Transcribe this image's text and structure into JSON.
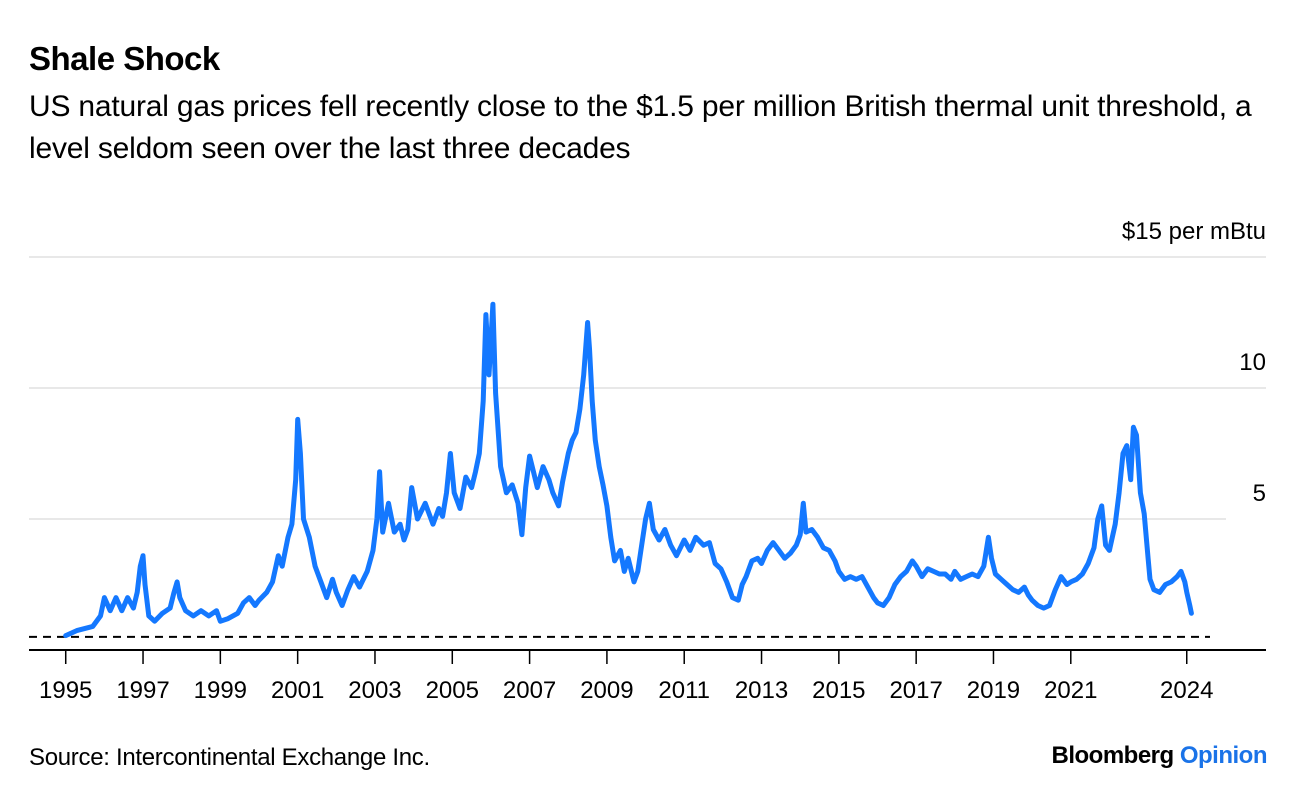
{
  "title": "Shale Shock",
  "subtitle": "US natural gas prices fell recently close to the $1.5 per million British thermal unit threshold, a level seldom seen over the last three decades",
  "source": "Source: Intercontinental Exchange Inc.",
  "brand": {
    "name": "Bloomberg",
    "product": "Opinion"
  },
  "colors": {
    "line": "#1478ff",
    "grid": "#e8e8e8",
    "axis": "#000000",
    "brand_accent": "#1a73e8"
  },
  "chart_data": {
    "type": "line",
    "title": "Shale Shock",
    "ylabel": "$15 per mBtu",
    "xlabel": "",
    "ylim": [
      0,
      15
    ],
    "xlim": [
      1994.05,
      2026.05
    ],
    "yticks": [
      {
        "value": 15,
        "label": "$15 per mBtu"
      },
      {
        "value": 10,
        "label": "10"
      },
      {
        "value": 5,
        "label": "5"
      }
    ],
    "xticks": [
      {
        "value": 1995,
        "label": "1995"
      },
      {
        "value": 1997,
        "label": "1997"
      },
      {
        "value": 1999,
        "label": "1999"
      },
      {
        "value": 2001,
        "label": "2001"
      },
      {
        "value": 2003,
        "label": "2003"
      },
      {
        "value": 2005,
        "label": "2005"
      },
      {
        "value": 2007,
        "label": "2007"
      },
      {
        "value": 2009,
        "label": "2009"
      },
      {
        "value": 2011,
        "label": "2011"
      },
      {
        "value": 2013,
        "label": "2013"
      },
      {
        "value": 2015,
        "label": "2015"
      },
      {
        "value": 2017,
        "label": "2017"
      },
      {
        "value": 2019,
        "label": "2019"
      },
      {
        "value": 2021,
        "label": "2021"
      },
      {
        "value": 2024,
        "label": "2024"
      }
    ],
    "threshold": {
      "value": 0.5,
      "style": "dashed"
    },
    "series": [
      {
        "name": "US natural gas price",
        "points": [
          [
            1995.0,
            0.55
          ],
          [
            1995.3,
            0.75
          ],
          [
            1995.7,
            0.9
          ],
          [
            1995.9,
            1.3
          ],
          [
            1996.0,
            2.0
          ],
          [
            1996.15,
            1.5
          ],
          [
            1996.3,
            2.0
          ],
          [
            1996.45,
            1.5
          ],
          [
            1996.6,
            2.0
          ],
          [
            1996.75,
            1.6
          ],
          [
            1996.85,
            2.2
          ],
          [
            1996.93,
            3.2
          ],
          [
            1997.0,
            3.6
          ],
          [
            1997.05,
            2.5
          ],
          [
            1997.15,
            1.3
          ],
          [
            1997.3,
            1.1
          ],
          [
            1997.5,
            1.4
          ],
          [
            1997.7,
            1.6
          ],
          [
            1997.8,
            2.2
          ],
          [
            1997.88,
            2.6
          ],
          [
            1997.95,
            2.0
          ],
          [
            1998.1,
            1.5
          ],
          [
            1998.3,
            1.3
          ],
          [
            1998.5,
            1.5
          ],
          [
            1998.7,
            1.3
          ],
          [
            1998.9,
            1.5
          ],
          [
            1999.0,
            1.1
          ],
          [
            1999.2,
            1.2
          ],
          [
            1999.45,
            1.4
          ],
          [
            1999.6,
            1.8
          ],
          [
            1999.75,
            2.0
          ],
          [
            1999.9,
            1.7
          ],
          [
            2000.0,
            1.9
          ],
          [
            2000.2,
            2.2
          ],
          [
            2000.35,
            2.6
          ],
          [
            2000.5,
            3.6
          ],
          [
            2000.6,
            3.2
          ],
          [
            2000.75,
            4.3
          ],
          [
            2000.85,
            4.8
          ],
          [
            2000.95,
            6.5
          ],
          [
            2001.0,
            8.8
          ],
          [
            2001.07,
            7.5
          ],
          [
            2001.15,
            5.0
          ],
          [
            2001.3,
            4.3
          ],
          [
            2001.45,
            3.2
          ],
          [
            2001.6,
            2.6
          ],
          [
            2001.75,
            2.0
          ],
          [
            2001.9,
            2.7
          ],
          [
            2002.0,
            2.2
          ],
          [
            2002.15,
            1.7
          ],
          [
            2002.3,
            2.3
          ],
          [
            2002.45,
            2.8
          ],
          [
            2002.6,
            2.4
          ],
          [
            2002.8,
            3.0
          ],
          [
            2002.95,
            3.8
          ],
          [
            2003.05,
            5.0
          ],
          [
            2003.12,
            6.8
          ],
          [
            2003.2,
            4.5
          ],
          [
            2003.35,
            5.6
          ],
          [
            2003.5,
            4.5
          ],
          [
            2003.65,
            4.8
          ],
          [
            2003.75,
            4.2
          ],
          [
            2003.85,
            4.6
          ],
          [
            2003.95,
            6.2
          ],
          [
            2004.1,
            5.0
          ],
          [
            2004.3,
            5.6
          ],
          [
            2004.5,
            4.8
          ],
          [
            2004.65,
            5.4
          ],
          [
            2004.75,
            5.1
          ],
          [
            2004.85,
            6.0
          ],
          [
            2004.95,
            7.5
          ],
          [
            2005.05,
            6.0
          ],
          [
            2005.2,
            5.4
          ],
          [
            2005.35,
            6.6
          ],
          [
            2005.5,
            6.2
          ],
          [
            2005.6,
            6.8
          ],
          [
            2005.7,
            7.5
          ],
          [
            2005.8,
            9.5
          ],
          [
            2005.87,
            12.8
          ],
          [
            2005.95,
            10.5
          ],
          [
            2006.05,
            13.2
          ],
          [
            2006.12,
            9.8
          ],
          [
            2006.25,
            7.0
          ],
          [
            2006.4,
            6.0
          ],
          [
            2006.55,
            6.3
          ],
          [
            2006.7,
            5.6
          ],
          [
            2006.8,
            4.4
          ],
          [
            2006.9,
            6.2
          ],
          [
            2007.0,
            7.4
          ],
          [
            2007.1,
            6.8
          ],
          [
            2007.2,
            6.2
          ],
          [
            2007.35,
            7.0
          ],
          [
            2007.5,
            6.5
          ],
          [
            2007.6,
            6.0
          ],
          [
            2007.75,
            5.5
          ],
          [
            2007.85,
            6.4
          ],
          [
            2008.0,
            7.5
          ],
          [
            2008.1,
            8.0
          ],
          [
            2008.2,
            8.3
          ],
          [
            2008.3,
            9.2
          ],
          [
            2008.4,
            10.5
          ],
          [
            2008.5,
            12.5
          ],
          [
            2008.55,
            11.5
          ],
          [
            2008.62,
            9.5
          ],
          [
            2008.7,
            8.0
          ],
          [
            2008.8,
            7.0
          ],
          [
            2008.9,
            6.3
          ],
          [
            2009.0,
            5.5
          ],
          [
            2009.1,
            4.3
          ],
          [
            2009.2,
            3.4
          ],
          [
            2009.35,
            3.8
          ],
          [
            2009.45,
            3.0
          ],
          [
            2009.55,
            3.5
          ],
          [
            2009.7,
            2.6
          ],
          [
            2009.8,
            3.0
          ],
          [
            2009.88,
            3.8
          ],
          [
            2010.0,
            5.0
          ],
          [
            2010.1,
            5.6
          ],
          [
            2010.2,
            4.6
          ],
          [
            2010.35,
            4.2
          ],
          [
            2010.5,
            4.6
          ],
          [
            2010.65,
            4.0
          ],
          [
            2010.8,
            3.6
          ],
          [
            2010.9,
            3.9
          ],
          [
            2011.0,
            4.2
          ],
          [
            2011.15,
            3.8
          ],
          [
            2011.3,
            4.3
          ],
          [
            2011.5,
            4.0
          ],
          [
            2011.65,
            4.1
          ],
          [
            2011.8,
            3.3
          ],
          [
            2011.95,
            3.1
          ],
          [
            2012.1,
            2.6
          ],
          [
            2012.25,
            2.0
          ],
          [
            2012.4,
            1.9
          ],
          [
            2012.5,
            2.5
          ],
          [
            2012.6,
            2.8
          ],
          [
            2012.75,
            3.4
          ],
          [
            2012.9,
            3.5
          ],
          [
            2013.0,
            3.3
          ],
          [
            2013.15,
            3.8
          ],
          [
            2013.3,
            4.1
          ],
          [
            2013.45,
            3.8
          ],
          [
            2013.6,
            3.5
          ],
          [
            2013.75,
            3.7
          ],
          [
            2013.9,
            4.0
          ],
          [
            2014.0,
            4.4
          ],
          [
            2014.08,
            5.6
          ],
          [
            2014.15,
            4.5
          ],
          [
            2014.3,
            4.6
          ],
          [
            2014.45,
            4.3
          ],
          [
            2014.6,
            3.9
          ],
          [
            2014.75,
            3.8
          ],
          [
            2014.9,
            3.4
          ],
          [
            2015.0,
            3.0
          ],
          [
            2015.15,
            2.7
          ],
          [
            2015.3,
            2.8
          ],
          [
            2015.45,
            2.7
          ],
          [
            2015.6,
            2.8
          ],
          [
            2015.75,
            2.4
          ],
          [
            2015.9,
            2.0
          ],
          [
            2016.0,
            1.8
          ],
          [
            2016.15,
            1.7
          ],
          [
            2016.3,
            2.0
          ],
          [
            2016.45,
            2.5
          ],
          [
            2016.6,
            2.8
          ],
          [
            2016.75,
            3.0
          ],
          [
            2016.9,
            3.4
          ],
          [
            2017.0,
            3.2
          ],
          [
            2017.15,
            2.8
          ],
          [
            2017.3,
            3.1
          ],
          [
            2017.45,
            3.0
          ],
          [
            2017.6,
            2.9
          ],
          [
            2017.75,
            2.9
          ],
          [
            2017.9,
            2.7
          ],
          [
            2018.0,
            3.0
          ],
          [
            2018.15,
            2.7
          ],
          [
            2018.3,
            2.8
          ],
          [
            2018.45,
            2.9
          ],
          [
            2018.6,
            2.8
          ],
          [
            2018.75,
            3.2
          ],
          [
            2018.87,
            4.3
          ],
          [
            2018.95,
            3.5
          ],
          [
            2019.05,
            2.9
          ],
          [
            2019.2,
            2.7
          ],
          [
            2019.35,
            2.5
          ],
          [
            2019.5,
            2.3
          ],
          [
            2019.65,
            2.2
          ],
          [
            2019.8,
            2.4
          ],
          [
            2019.9,
            2.1
          ],
          [
            2020.0,
            1.9
          ],
          [
            2020.15,
            1.7
          ],
          [
            2020.3,
            1.6
          ],
          [
            2020.45,
            1.7
          ],
          [
            2020.6,
            2.3
          ],
          [
            2020.75,
            2.8
          ],
          [
            2020.9,
            2.5
          ],
          [
            2021.0,
            2.6
          ],
          [
            2021.15,
            2.7
          ],
          [
            2021.3,
            2.9
          ],
          [
            2021.45,
            3.3
          ],
          [
            2021.6,
            3.9
          ],
          [
            2021.7,
            5.0
          ],
          [
            2021.8,
            5.5
          ],
          [
            2021.9,
            4.0
          ],
          [
            2022.0,
            3.8
          ],
          [
            2022.15,
            4.8
          ],
          [
            2022.25,
            6.0
          ],
          [
            2022.35,
            7.5
          ],
          [
            2022.45,
            7.8
          ],
          [
            2022.55,
            6.5
          ],
          [
            2022.62,
            8.5
          ],
          [
            2022.7,
            8.2
          ],
          [
            2022.8,
            6.0
          ],
          [
            2022.9,
            5.2
          ],
          [
            2023.0,
            3.5
          ],
          [
            2023.05,
            2.7
          ],
          [
            2023.15,
            2.3
          ],
          [
            2023.3,
            2.2
          ],
          [
            2023.45,
            2.5
          ],
          [
            2023.6,
            2.6
          ],
          [
            2023.75,
            2.8
          ],
          [
            2023.85,
            3.0
          ],
          [
            2023.95,
            2.6
          ],
          [
            2024.0,
            2.2
          ],
          [
            2024.08,
            1.7
          ],
          [
            2024.12,
            1.4
          ]
        ]
      }
    ]
  }
}
